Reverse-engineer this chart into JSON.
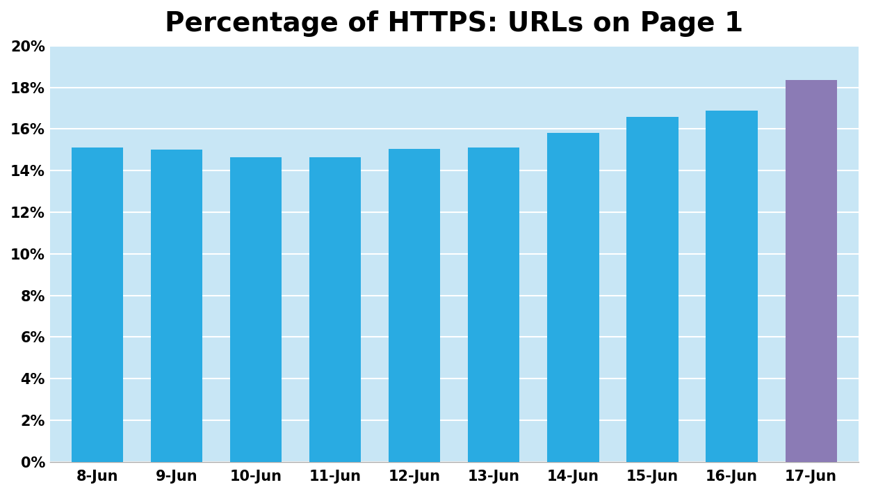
{
  "title": "Percentage of HTTPS: URLs on Page 1",
  "categories": [
    "8-Jun",
    "9-Jun",
    "10-Jun",
    "11-Jun",
    "12-Jun",
    "13-Jun",
    "14-Jun",
    "15-Jun",
    "16-Jun",
    "17-Jun"
  ],
  "values": [
    15.1,
    15.0,
    14.65,
    14.65,
    15.05,
    15.1,
    15.8,
    16.6,
    16.9,
    18.35
  ],
  "bar_colors": [
    "#29ABE2",
    "#29ABE2",
    "#29ABE2",
    "#29ABE2",
    "#29ABE2",
    "#29ABE2",
    "#29ABE2",
    "#29ABE2",
    "#29ABE2",
    "#8B7BB5"
  ],
  "ylim": [
    0,
    20
  ],
  "yticks": [
    0,
    2,
    4,
    6,
    8,
    10,
    12,
    14,
    16,
    18,
    20
  ],
  "plot_bg_color": "#C8E6F5",
  "grid_color": "#FFFFFF",
  "title_fontsize": 28,
  "tick_fontsize": 15,
  "title_fontweight": "bold",
  "bar_width": 0.65,
  "fig_bg_color": "#FFFFFF",
  "axis_line_color": "#AAAAAA"
}
